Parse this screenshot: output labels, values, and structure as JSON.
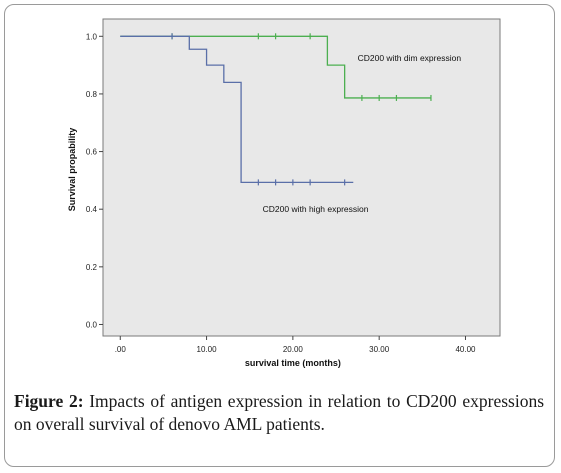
{
  "figure": {
    "label": "Figure 2:",
    "caption": "Impacts of antigen expression in relation to CD200 expressions on overall survival of denovo AML patients."
  },
  "chart_data": {
    "type": "line",
    "subtype": "kaplan-meier",
    "xlabel": "survival time (months)",
    "ylabel": "Survival propability",
    "xlim": [
      -2,
      44
    ],
    "ylim": [
      -0.04,
      1.06
    ],
    "x_ticks": [
      0,
      10,
      20,
      30,
      40
    ],
    "x_tick_labels": [
      ".00",
      "10.00",
      "20.00",
      "30.00",
      "40.00"
    ],
    "y_ticks": [
      0,
      0.2,
      0.4,
      0.6,
      0.8,
      1.0
    ],
    "y_tick_labels": [
      "0.0",
      "0.2",
      "0.4",
      "0.6",
      "0.8",
      "1.0"
    ],
    "background": "#e8e8e8",
    "grid": false,
    "series": [
      {
        "name": "CD200 with dim expression",
        "color": "#4caf50",
        "steps": [
          [
            0,
            1.0
          ],
          [
            24,
            0.9
          ],
          [
            26,
            0.786
          ],
          [
            36,
            0.786
          ]
        ],
        "censored": [
          [
            6,
            1.0
          ],
          [
            16,
            1.0
          ],
          [
            18,
            1.0
          ],
          [
            22,
            1.0
          ],
          [
            28,
            0.786
          ],
          [
            30,
            0.786
          ],
          [
            32,
            0.786
          ],
          [
            36,
            0.786
          ]
        ]
      },
      {
        "name": "CD200 with high expression",
        "color": "#5a6fa8",
        "steps": [
          [
            0,
            1.0
          ],
          [
            8,
            0.955
          ],
          [
            10,
            0.9
          ],
          [
            12,
            0.84
          ],
          [
            14,
            0.493
          ],
          [
            27,
            0.493
          ]
        ],
        "censored": [
          [
            6,
            1.0
          ],
          [
            16,
            0.493
          ],
          [
            18,
            0.493
          ],
          [
            20,
            0.493
          ],
          [
            22,
            0.493
          ],
          [
            26,
            0.493
          ]
        ]
      }
    ]
  }
}
